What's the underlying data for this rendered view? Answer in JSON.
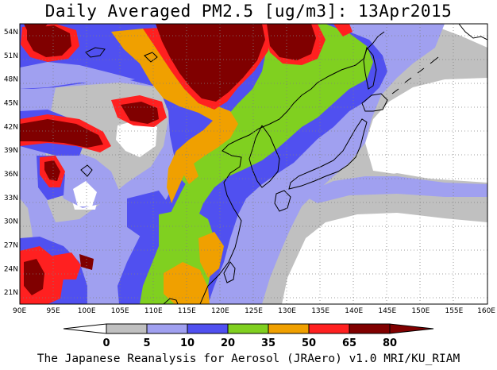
{
  "title": "Daily Averaged PM2.5 [ug/m3]: 13Apr2015",
  "credit": "The Japanese Reanalysis for Aerosol (JRAero) v1.0 MRI/KU_RIAM",
  "map": {
    "lon_range": [
      90,
      160
    ],
    "lat_range": [
      19.5,
      55
    ],
    "lon_ticks": [
      "90E",
      "95E",
      "100E",
      "105E",
      "110E",
      "115E",
      "120E",
      "125E",
      "130E",
      "135E",
      "140E",
      "145E",
      "150E",
      "155E",
      "160E"
    ],
    "lat_ticks": [
      "21N",
      "24N",
      "27N",
      "30N",
      "33N",
      "36N",
      "39N",
      "42N",
      "45N",
      "48N",
      "51N",
      "54N"
    ]
  },
  "colorbar": {
    "levels": [
      "0",
      "5",
      "10",
      "20",
      "35",
      "50",
      "65",
      "80"
    ],
    "colors": [
      "#ffffff",
      "#c0c0c0",
      "#a0a0f0",
      "#5050f0",
      "#80d020",
      "#f0a000",
      "#ff2020",
      "#800000"
    ]
  },
  "palette": {
    "gray": "#c0c0c0",
    "light_blue": "#a0a0f0",
    "blue": "#5050f0",
    "green": "#80d020",
    "orange": "#f0a000",
    "red": "#ff2020",
    "dark_red": "#800000",
    "coast": "#000000"
  }
}
